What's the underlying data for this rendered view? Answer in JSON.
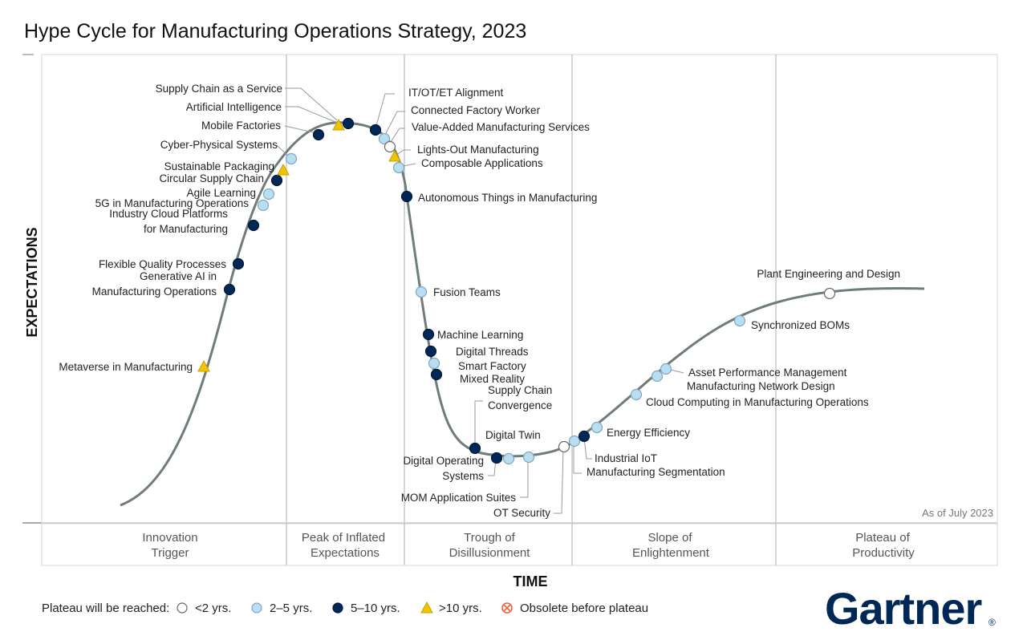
{
  "chart_data": {
    "type": "hype-cycle",
    "title": "Hype Cycle for Manufacturing Operations Strategy, 2023",
    "ylabel": "EXPECTATIONS",
    "xlabel": "TIME",
    "as_of": "As of July 2023",
    "phases": [
      {
        "line1": "Innovation",
        "line2": "Trigger"
      },
      {
        "line1": "Peak of Inflated",
        "line2": "Expectations"
      },
      {
        "line1": "Trough of",
        "line2": "Disillusionment"
      },
      {
        "line1": "Slope of",
        "line2": "Enlightenment"
      },
      {
        "line1": "Plateau of",
        "line2": "Productivity"
      }
    ],
    "legend": {
      "title": "Plateau will be reached:",
      "items": [
        {
          "key": "lt2",
          "label": "<2 yrs."
        },
        {
          "key": "2to5",
          "label": "2–5 yrs."
        },
        {
          "key": "5to10",
          "label": "5–10 yrs."
        },
        {
          "key": "gt10",
          "label": ">10 yrs."
        },
        {
          "key": "obsolete",
          "label": "Obsolete before plateau"
        }
      ]
    },
    "colors": {
      "lt2": "#ffffff",
      "2to5": "#b9def2",
      "5to10": "#002856",
      "gt10": "#f2c400",
      "obsolete": "#e8603c",
      "curve": "#6f7c78",
      "grid": "#bbbbbb"
    },
    "technologies": [
      {
        "name": "Metaverse in Manufacturing",
        "phase": "Innovation Trigger",
        "plateau": "gt10"
      },
      {
        "name": "Generative AI in Manufacturing Operations",
        "phase": "Innovation Trigger",
        "plateau": "5to10"
      },
      {
        "name": "Flexible Quality Processes",
        "phase": "Innovation Trigger",
        "plateau": "5to10"
      },
      {
        "name": "Industry Cloud Platforms for Manufacturing",
        "phase": "Innovation Trigger",
        "plateau": "5to10"
      },
      {
        "name": "5G in Manufacturing Operations",
        "phase": "Innovation Trigger",
        "plateau": "2to5"
      },
      {
        "name": "Agile Learning",
        "phase": "Innovation Trigger",
        "plateau": "2to5"
      },
      {
        "name": "Circular Supply Chain",
        "phase": "Innovation Trigger",
        "plateau": "5to10"
      },
      {
        "name": "Sustainable Packaging",
        "phase": "Innovation Trigger",
        "plateau": "gt10"
      },
      {
        "name": "Cyber-Physical Systems",
        "phase": "Peak of Inflated Expectations",
        "plateau": "2to5"
      },
      {
        "name": "Mobile Factories",
        "phase": "Peak of Inflated Expectations",
        "plateau": "5to10"
      },
      {
        "name": "Artificial Intelligence",
        "phase": "Peak of Inflated Expectations",
        "plateau": "gt10"
      },
      {
        "name": "Supply Chain as a Service",
        "phase": "Peak of Inflated Expectations",
        "plateau": "5to10"
      },
      {
        "name": "IT/OT/ET Alignment",
        "phase": "Peak of Inflated Expectations",
        "plateau": "5to10"
      },
      {
        "name": "Connected Factory Worker",
        "phase": "Peak of Inflated Expectations",
        "plateau": "2to5"
      },
      {
        "name": "Value-Added Manufacturing Services",
        "phase": "Peak of Inflated Expectations",
        "plateau": "lt2"
      },
      {
        "name": "Lights-Out Manufacturing",
        "phase": "Peak of Inflated Expectations",
        "plateau": "gt10"
      },
      {
        "name": "Composable Applications",
        "phase": "Trough of Disillusionment",
        "plateau": "2to5"
      },
      {
        "name": "Autonomous Things in Manufacturing",
        "phase": "Trough of Disillusionment",
        "plateau": "5to10"
      },
      {
        "name": "Fusion Teams",
        "phase": "Trough of Disillusionment",
        "plateau": "2to5"
      },
      {
        "name": "Machine Learning",
        "phase": "Trough of Disillusionment",
        "plateau": "5to10"
      },
      {
        "name": "Digital Threads",
        "phase": "Trough of Disillusionment",
        "plateau": "5to10"
      },
      {
        "name": "Smart Factory",
        "phase": "Trough of Disillusionment",
        "plateau": "2to5"
      },
      {
        "name": "Mixed Reality",
        "phase": "Trough of Disillusionment",
        "plateau": "5to10"
      },
      {
        "name": "Supply Chain Convergence",
        "phase": "Trough of Disillusionment",
        "plateau": "5to10"
      },
      {
        "name": "Digital Twin",
        "phase": "Trough of Disillusionment",
        "plateau": "5to10"
      },
      {
        "name": "Digital Operating Systems",
        "phase": "Trough of Disillusionment",
        "plateau": "2to5"
      },
      {
        "name": "MOM Application Suites",
        "phase": "Trough of Disillusionment",
        "plateau": "2to5"
      },
      {
        "name": "OT Security",
        "phase": "Trough of Disillusionment",
        "plateau": "lt2"
      },
      {
        "name": "Manufacturing Segmentation",
        "phase": "Slope of Enlightenment",
        "plateau": "2to5"
      },
      {
        "name": "Industrial IoT",
        "phase": "Slope of Enlightenment",
        "plateau": "5to10"
      },
      {
        "name": "Energy Efficiency",
        "phase": "Slope of Enlightenment",
        "plateau": "2to5"
      },
      {
        "name": "Cloud Computing in Manufacturing Operations",
        "phase": "Slope of Enlightenment",
        "plateau": "2to5"
      },
      {
        "name": "Manufacturing Network Design",
        "phase": "Slope of Enlightenment",
        "plateau": "2to5"
      },
      {
        "name": "Asset Performance Management",
        "phase": "Slope of Enlightenment",
        "plateau": "2to5"
      },
      {
        "name": "Synchronized BOMs",
        "phase": "Slope of Enlightenment",
        "plateau": "2to5"
      },
      {
        "name": "Plant Engineering and Design",
        "phase": "Plateau of Productivity",
        "plateau": "lt2"
      }
    ]
  },
  "brand": {
    "name": "Gartner",
    "mark": "®"
  }
}
